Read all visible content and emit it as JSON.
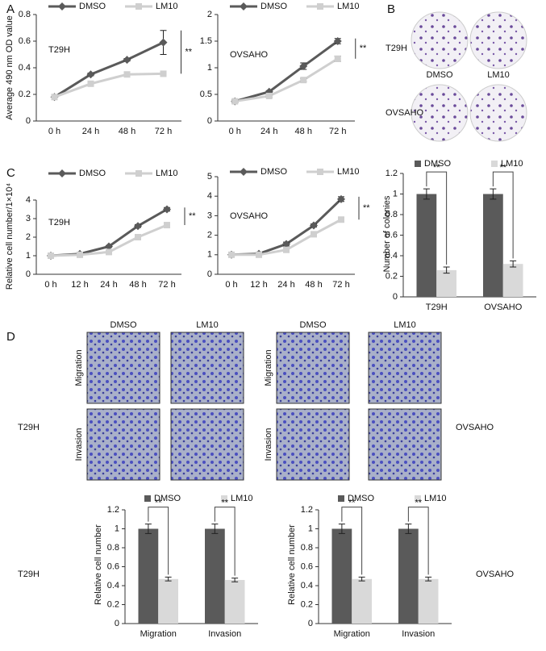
{
  "panel_labels": [
    "A",
    "B",
    "C",
    "D"
  ],
  "photos": {
    "colony": {
      "rows": [
        "T29H",
        "OVSAHO"
      ],
      "cols": [
        "DMSO",
        "LM10"
      ]
    },
    "transwell": [
      {
        "cols": [
          "DMSO",
          "LM10"
        ],
        "rows": [
          "Migration",
          "Invasion"
        ],
        "cell_line": "T29H"
      },
      {
        "cols": [
          "DMSO",
          "LM10"
        ],
        "rows": [
          "Migration",
          "Invasion"
        ],
        "cell_line": "OVSAHO"
      }
    ]
  },
  "chart_data": [
    {
      "type": "line",
      "y_label": "Average 490 nm OD value",
      "annotation": "T29H",
      "significance": "**",
      "categories": [
        "0 h",
        "24 h",
        "48 h",
        "72 h"
      ],
      "ylim": [
        0,
        0.8
      ],
      "yticks": [
        0,
        0.2,
        0.4,
        0.6,
        0.8
      ],
      "series": [
        {
          "name": "DMSO",
          "color": "#5a5a5a",
          "values": [
            0.18,
            0.35,
            0.46,
            0.59
          ],
          "errors": [
            0.01,
            0.01,
            0.01,
            0.09
          ]
        },
        {
          "name": "LM10",
          "color": "#cfcfcf",
          "values": [
            0.18,
            0.28,
            0.35,
            0.355
          ],
          "errors": [
            0.01,
            0.01,
            0.01,
            0.01
          ]
        }
      ]
    },
    {
      "type": "line",
      "annotation": "OVSAHO",
      "significance": "**",
      "categories": [
        "0 h",
        "24 h",
        "48 h",
        "72 h"
      ],
      "ylim": [
        0,
        2
      ],
      "yticks": [
        0,
        0.5,
        1,
        1.5,
        2
      ],
      "series": [
        {
          "name": "DMSO",
          "color": "#5a5a5a",
          "values": [
            0.37,
            0.55,
            1.03,
            1.5
          ],
          "errors": [
            0.03,
            0.02,
            0.06,
            0.05
          ]
        },
        {
          "name": "LM10",
          "color": "#cfcfcf",
          "values": [
            0.37,
            0.47,
            0.77,
            1.17
          ],
          "errors": [
            0.02,
            0.02,
            0.03,
            0.05
          ]
        }
      ]
    },
    {
      "type": "line",
      "y_label": "Relative cell number/1×10⁴",
      "annotation": "T29H",
      "significance": "**",
      "categories": [
        "0 h",
        "12 h",
        "24 h",
        "48 h",
        "72 h"
      ],
      "ylim": [
        0,
        4
      ],
      "yticks": [
        0,
        1,
        2,
        3,
        4
      ],
      "series": [
        {
          "name": "DMSO",
          "color": "#5a5a5a",
          "values": [
            1,
            1.1,
            1.5,
            2.6,
            3.5
          ],
          "errors": [
            0.05,
            0.05,
            0.05,
            0.08,
            0.1
          ]
        },
        {
          "name": "LM10",
          "color": "#cfcfcf",
          "values": [
            1,
            1.05,
            1.2,
            2,
            2.65
          ],
          "errors": [
            0.05,
            0.05,
            0.05,
            0.05,
            0.05
          ]
        }
      ]
    },
    {
      "type": "line",
      "annotation": "OVSAHO",
      "significance": "**",
      "categories": [
        "0 h",
        "12 h",
        "24 h",
        "48 h",
        "72 h"
      ],
      "ylim": [
        0,
        5
      ],
      "yticks": [
        0,
        1,
        2,
        3,
        4,
        5
      ],
      "series": [
        {
          "name": "DMSO",
          "color": "#5a5a5a",
          "values": [
            1,
            1.05,
            1.55,
            2.5,
            3.85
          ],
          "errors": [
            0.05,
            0.05,
            0.1,
            0.08,
            0.12
          ]
        },
        {
          "name": "LM10",
          "color": "#cfcfcf",
          "values": [
            1,
            1,
            1.25,
            2.05,
            2.8
          ],
          "errors": [
            0.05,
            0.05,
            0.05,
            0.05,
            0.05
          ]
        }
      ]
    },
    {
      "type": "bar",
      "y_label": "Number of colonies",
      "significance": [
        "**",
        "**"
      ],
      "categories": [
        "T29H",
        "OVSAHO"
      ],
      "ylim": [
        0,
        1.2
      ],
      "yticks": [
        0,
        0.2,
        0.4,
        0.6,
        0.8,
        1,
        1.2
      ],
      "series": [
        {
          "name": "DMSO",
          "color": "#5a5a5a",
          "values": [
            1,
            1
          ],
          "errors": [
            0.05,
            0.05
          ]
        },
        {
          "name": "LM10",
          "color": "#d9d9d9",
          "values": [
            0.26,
            0.32
          ],
          "errors": [
            0.03,
            0.03
          ]
        }
      ]
    },
    {
      "type": "bar",
      "y_label": "Relative cell number",
      "annotation": "T29H",
      "significance": [
        "**",
        "**"
      ],
      "categories": [
        "Migration",
        "Invasion"
      ],
      "ylim": [
        0,
        1.2
      ],
      "yticks": [
        0,
        0.2,
        0.4,
        0.6,
        0.8,
        1,
        1.2
      ],
      "series": [
        {
          "name": "DMSO",
          "color": "#5a5a5a",
          "values": [
            1,
            1
          ],
          "errors": [
            0.05,
            0.05
          ]
        },
        {
          "name": "LM10",
          "color": "#d9d9d9",
          "values": [
            0.47,
            0.46
          ],
          "errors": [
            0.02,
            0.02
          ]
        }
      ]
    },
    {
      "type": "bar",
      "y_label": "Relative cell number",
      "annotation": "OVSAHO",
      "significance": [
        "**",
        "**"
      ],
      "categories": [
        "Migration",
        "Invasion"
      ],
      "ylim": [
        0,
        1.2
      ],
      "yticks": [
        0,
        0.2,
        0.4,
        0.6,
        0.8,
        1,
        1.2
      ],
      "series": [
        {
          "name": "DMSO",
          "color": "#5a5a5a",
          "values": [
            1,
            1
          ],
          "errors": [
            0.05,
            0.05
          ]
        },
        {
          "name": "LM10",
          "color": "#d9d9d9",
          "values": [
            0.47,
            0.47
          ],
          "errors": [
            0.02,
            0.02
          ]
        }
      ]
    }
  ]
}
